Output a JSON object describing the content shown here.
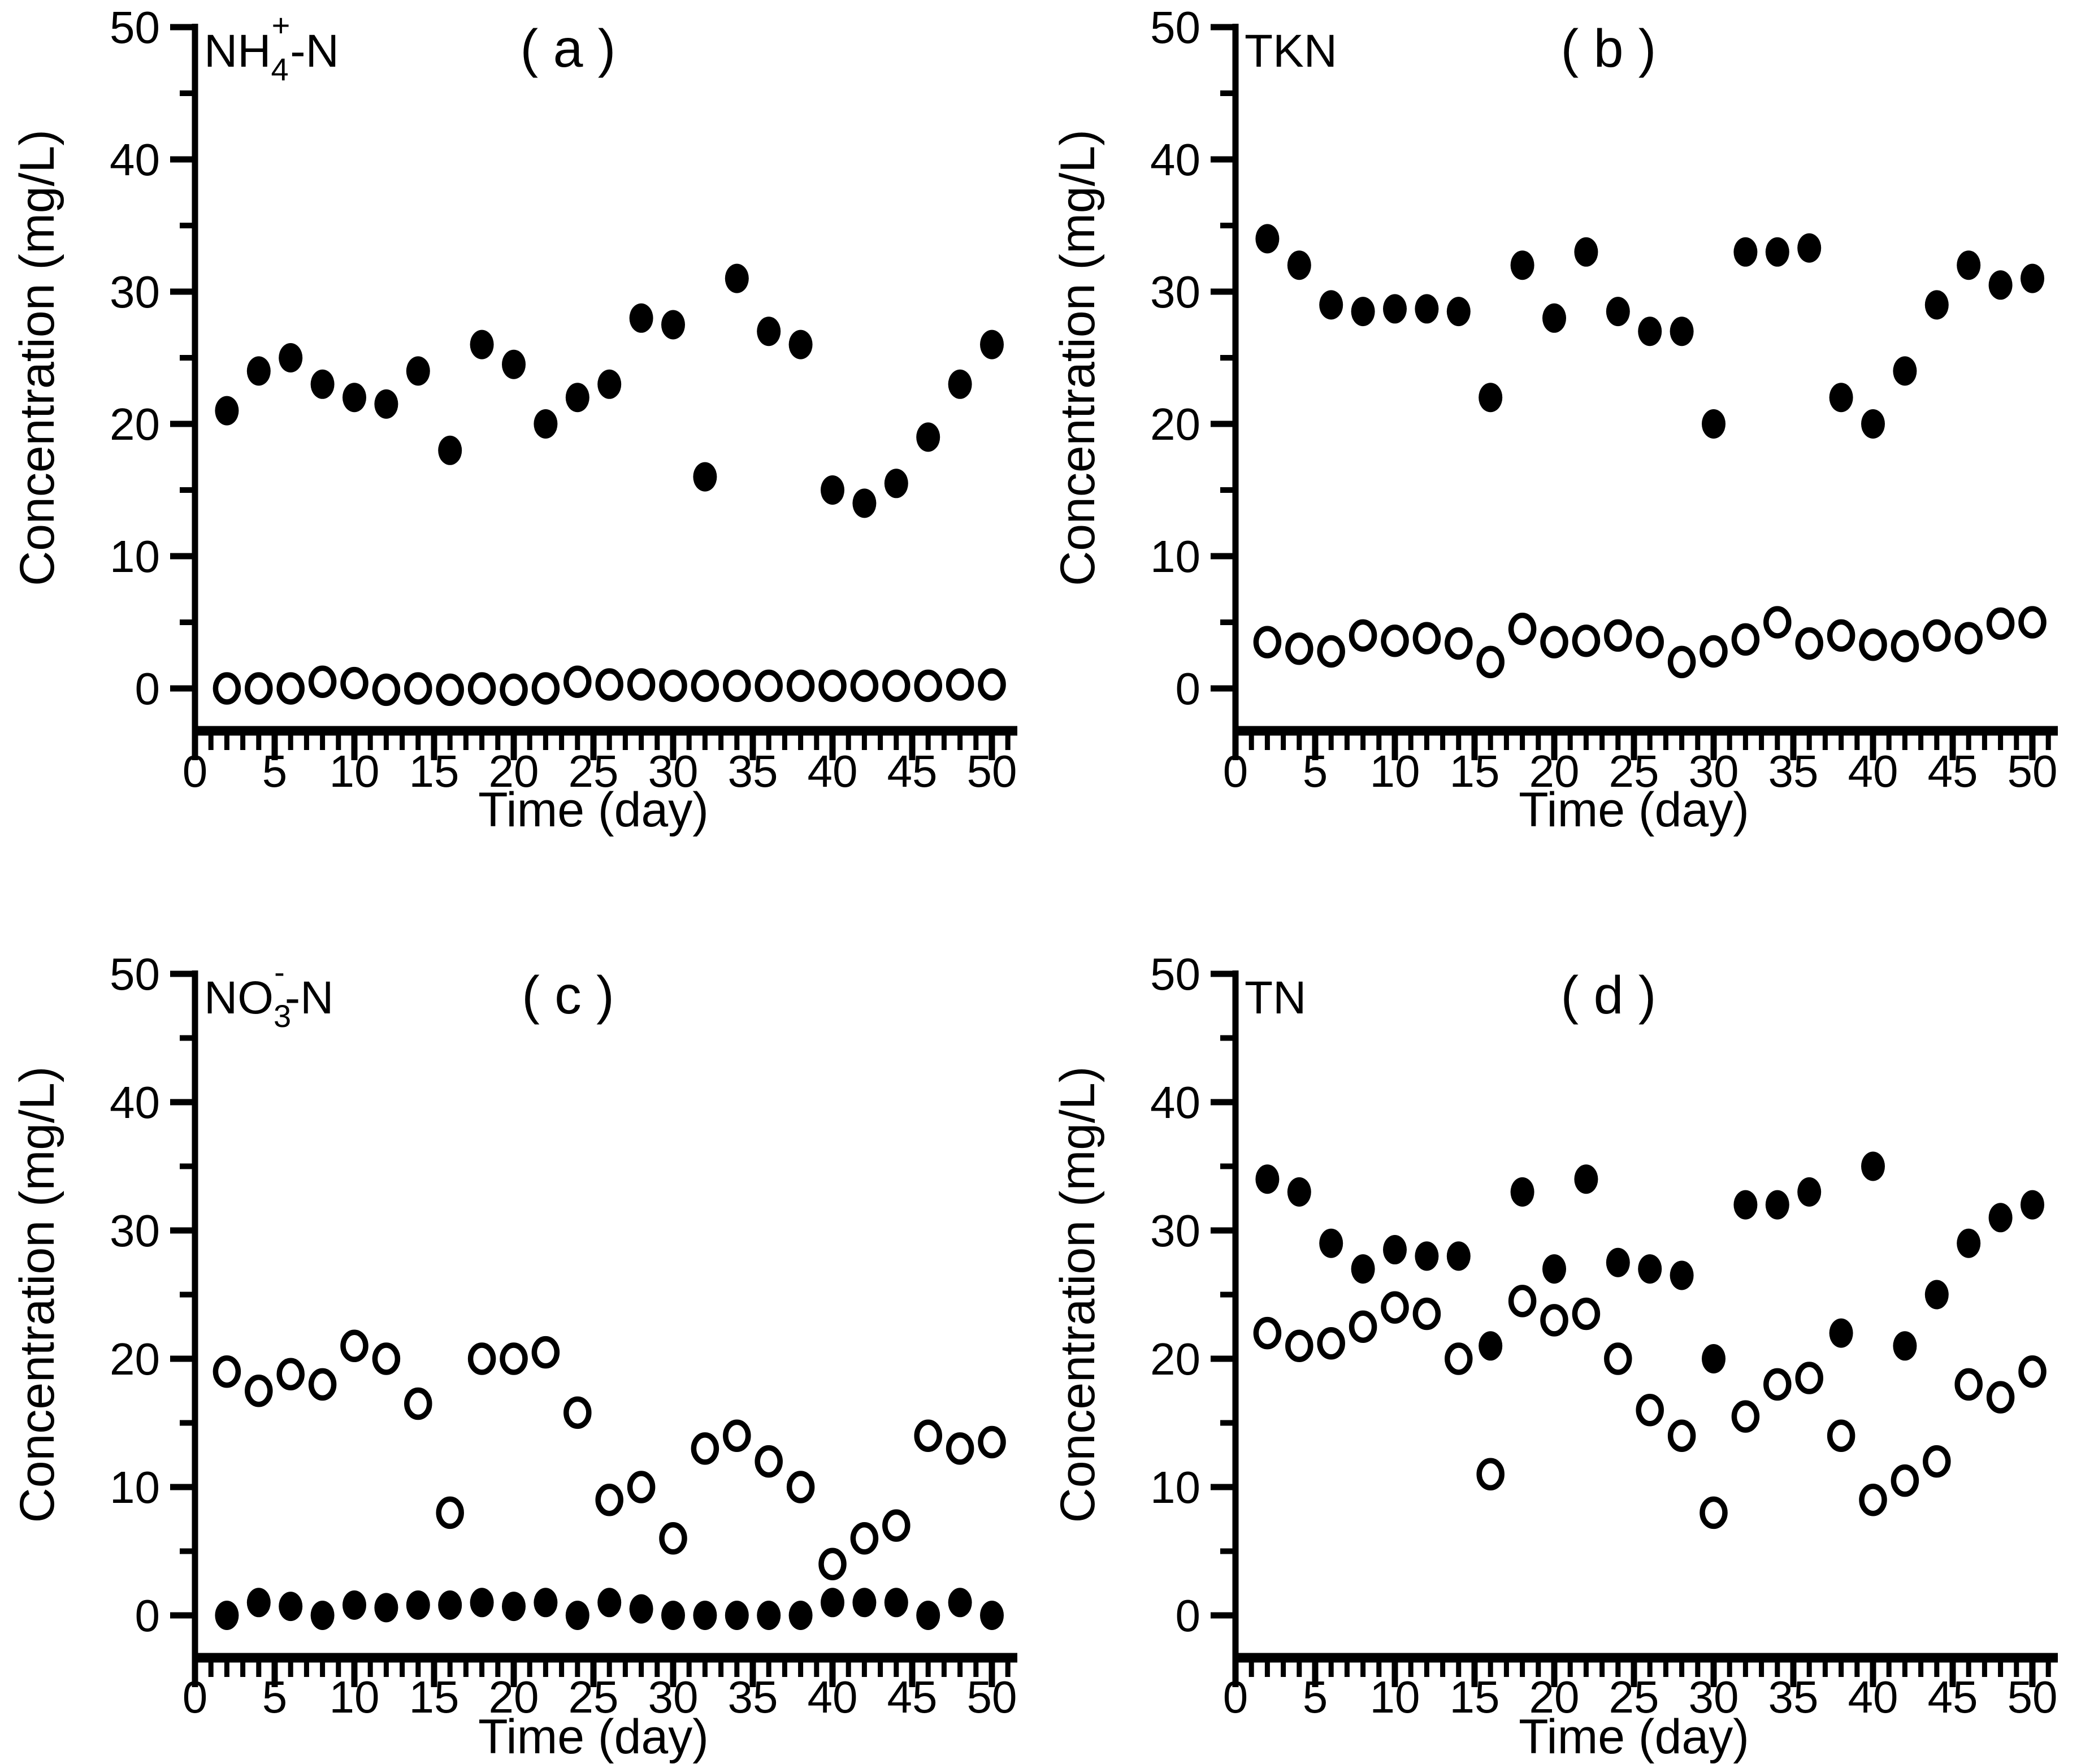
{
  "figure": {
    "background": "#ffffff",
    "ink": "#000000",
    "panels_order": [
      "a",
      "b",
      "c",
      "d"
    ]
  },
  "chart_data": [
    {
      "type": "scatter",
      "panel_letter": "( a )",
      "analyte_parts": [
        {
          "text": "NH"
        },
        {
          "text": "4",
          "style": "sub"
        },
        {
          "text": "+",
          "style": "sup"
        },
        {
          "text": "-N"
        }
      ],
      "xlabel": "Time (day)",
      "ylabel": "Concentration (mg/L)",
      "xlim": [
        0,
        51.5
      ],
      "ylim": [
        -3.3,
        50
      ],
      "grid": "off",
      "legend": "none",
      "xticks_labeled": [
        0,
        5,
        10,
        15,
        20,
        25,
        30,
        35,
        40,
        45,
        50
      ],
      "xtick_minor_step": 1,
      "yticks_labeled": [
        0,
        10,
        20,
        30,
        40,
        50
      ],
      "yticks_minor": [
        5,
        15,
        25,
        35,
        45
      ],
      "x_days": [
        2,
        4,
        6,
        8,
        10,
        12,
        14,
        16,
        18,
        20,
        22,
        24,
        26,
        28,
        30,
        32,
        34,
        36,
        38,
        40,
        42,
        44,
        46,
        48,
        50
      ],
      "series": [
        {
          "name": "filled-circles",
          "marker": "filled-circle",
          "values": [
            21,
            24,
            25,
            23,
            22,
            21.5,
            24,
            18,
            26,
            24.5,
            20,
            22,
            23,
            28,
            27.5,
            16,
            31,
            27,
            26,
            15,
            14,
            15.5,
            19,
            23,
            26
          ]
        },
        {
          "name": "open-circles",
          "marker": "open-circle",
          "values": [
            0,
            0,
            0,
            0.5,
            0.4,
            -0.1,
            0,
            -0.1,
            0,
            -0.1,
            0,
            0.5,
            0.3,
            0.3,
            0.2,
            0.2,
            0.2,
            0.2,
            0.2,
            0.2,
            0.2,
            0.2,
            0.2,
            0.3,
            0.3
          ]
        }
      ]
    },
    {
      "type": "scatter",
      "panel_letter": "( b )",
      "analyte_parts": [
        {
          "text": "TKN"
        }
      ],
      "xlabel": "Time (day)",
      "ylabel": "Concentration (mg/L)",
      "xlim": [
        0,
        51.5
      ],
      "ylim": [
        -3.3,
        50
      ],
      "grid": "off",
      "legend": "none",
      "xticks_labeled": [
        0,
        5,
        10,
        15,
        20,
        25,
        30,
        35,
        40,
        45,
        50
      ],
      "xtick_minor_step": 1,
      "yticks_labeled": [
        0,
        10,
        20,
        30,
        40,
        50
      ],
      "yticks_minor": [
        5,
        15,
        25,
        35,
        45
      ],
      "x_days": [
        2,
        4,
        6,
        8,
        10,
        12,
        14,
        16,
        18,
        20,
        22,
        24,
        26,
        28,
        30,
        32,
        34,
        36,
        38,
        40,
        42,
        44,
        46,
        48,
        50
      ],
      "series": [
        {
          "name": "filled-circles",
          "marker": "filled-circle",
          "values": [
            34,
            32,
            29,
            28.5,
            28.7,
            28.7,
            28.5,
            22,
            32,
            28,
            33,
            28.5,
            27,
            27,
            20,
            33,
            33,
            33.3,
            22,
            20,
            24,
            29,
            32,
            30.5,
            31
          ]
        },
        {
          "name": "open-circles",
          "marker": "open-circle",
          "values": [
            3.5,
            3,
            2.8,
            4,
            3.6,
            3.8,
            3.4,
            2,
            4.5,
            3.5,
            3.6,
            4,
            3.5,
            2,
            2.8,
            3.7,
            5,
            3.4,
            4,
            3.3,
            3.2,
            4,
            3.8,
            4.9,
            5
          ]
        }
      ]
    },
    {
      "type": "scatter",
      "panel_letter": "( c )",
      "analyte_parts": [
        {
          "text": "NO"
        },
        {
          "text": "3",
          "style": "sub"
        },
        {
          "text": "-",
          "style": "sup"
        },
        {
          "text": "-N"
        }
      ],
      "xlabel": "Time (day)",
      "ylabel": "Concentration (mg/L)",
      "xlim": [
        0,
        51.5
      ],
      "ylim": [
        -3.3,
        50
      ],
      "grid": "off",
      "legend": "none",
      "xticks_labeled": [
        0,
        5,
        10,
        15,
        20,
        25,
        30,
        35,
        40,
        45,
        50
      ],
      "xtick_minor_step": 1,
      "yticks_labeled": [
        0,
        10,
        20,
        30,
        40,
        50
      ],
      "yticks_minor": [
        5,
        15,
        25,
        35,
        45
      ],
      "x_days": [
        2,
        4,
        6,
        8,
        10,
        12,
        14,
        16,
        18,
        20,
        22,
        24,
        26,
        28,
        30,
        32,
        34,
        36,
        38,
        40,
        42,
        44,
        46,
        48,
        50
      ],
      "series": [
        {
          "name": "filled-circles",
          "marker": "filled-circle",
          "values": [
            0,
            1,
            0.7,
            0,
            0.8,
            0.6,
            0.8,
            0.8,
            1,
            0.7,
            1,
            0,
            1,
            0.5,
            0,
            0,
            0,
            0,
            0,
            1,
            1,
            1,
            0,
            1,
            0
          ]
        },
        {
          "name": "open-circles",
          "marker": "open-circle",
          "values": [
            19,
            17.5,
            18.8,
            18,
            21,
            20,
            16.5,
            8,
            20,
            20,
            20.5,
            15.8,
            9,
            10,
            6,
            13,
            14,
            12,
            10,
            4,
            6,
            7,
            14,
            13,
            13.5
          ]
        }
      ]
    },
    {
      "type": "scatter",
      "panel_letter": "( d )",
      "analyte_parts": [
        {
          "text": "TN"
        }
      ],
      "xlabel": "Time (day)",
      "ylabel": "Concentration (mg/L)",
      "xlim": [
        0,
        51.5
      ],
      "ylim": [
        -3.3,
        50
      ],
      "grid": "off",
      "legend": "none",
      "xticks_labeled": [
        0,
        5,
        10,
        15,
        20,
        25,
        30,
        35,
        40,
        45,
        50
      ],
      "xtick_minor_step": 1,
      "yticks_labeled": [
        0,
        10,
        20,
        30,
        40,
        50
      ],
      "yticks_minor": [
        5,
        15,
        25,
        35,
        45
      ],
      "x_days": [
        2,
        4,
        6,
        8,
        10,
        12,
        14,
        16,
        18,
        20,
        22,
        24,
        26,
        28,
        30,
        32,
        34,
        36,
        38,
        40,
        42,
        44,
        46,
        48,
        50
      ],
      "series": [
        {
          "name": "filled-circles",
          "marker": "filled-circle",
          "values": [
            34,
            33,
            29,
            27,
            28.5,
            28,
            28,
            21,
            33,
            27,
            34,
            27.5,
            27,
            26.5,
            20,
            32,
            32,
            33,
            22,
            35,
            21,
            25,
            29,
            31,
            32
          ]
        },
        {
          "name": "open-circles",
          "marker": "open-circle",
          "values": [
            22,
            21,
            21.2,
            22.5,
            24,
            23.5,
            20,
            11,
            24.5,
            23,
            23.5,
            20,
            16,
            14,
            8,
            15.5,
            18,
            18.5,
            14,
            9,
            10.5,
            12,
            18,
            17,
            19
          ]
        }
      ]
    }
  ]
}
